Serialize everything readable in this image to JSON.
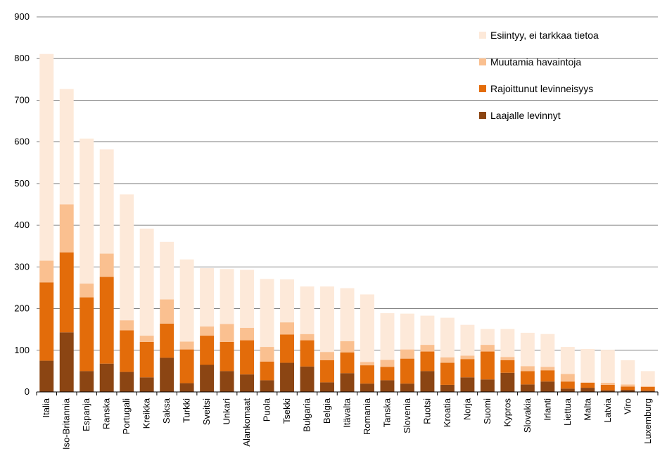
{
  "chart_data": {
    "type": "bar",
    "stacked": true,
    "title": "",
    "xlabel": "",
    "ylabel": "",
    "ylim": [
      0,
      900
    ],
    "yticks": [
      0,
      100,
      200,
      300,
      400,
      500,
      600,
      700,
      800,
      900
    ],
    "grid": true,
    "legend_position": "top-right",
    "categories": [
      "Italia",
      "Iso-Britannia",
      "Espanja",
      "Ranska",
      "Portugali",
      "Kreikka",
      "Saksa",
      "Turkki",
      "Sveitsi",
      "Unkari",
      "Alankomaat",
      "Puola",
      "Tsekki",
      "Bulgaria",
      "Belgia",
      "Itävalta",
      "Romania",
      "Tanska",
      "Slovenia",
      "Ruotsi",
      "Kroatia",
      "Norja",
      "Suomi",
      "Kypros",
      "Slovakia",
      "Irlanti",
      "Liettua",
      "Malta",
      "Latvia",
      "Viro",
      "Luxemburg"
    ],
    "series": [
      {
        "name": "Laajalle levinnyt",
        "color": "#8B4513",
        "values": [
          75,
          143,
          50,
          68,
          48,
          35,
          82,
          21,
          65,
          50,
          42,
          28,
          70,
          61,
          23,
          45,
          20,
          28,
          20,
          50,
          17,
          35,
          30,
          46,
          18,
          25,
          8,
          10,
          4,
          5,
          3
        ]
      },
      {
        "name": "Rajoittunut levinneisyys",
        "color": "#E36C0A",
        "values": [
          188,
          192,
          177,
          208,
          100,
          85,
          82,
          81,
          70,
          70,
          82,
          45,
          68,
          63,
          53,
          50,
          44,
          32,
          60,
          47,
          53,
          44,
          67,
          30,
          32,
          27,
          17,
          12,
          13,
          8,
          9
        ]
      },
      {
        "name": "Muutamia havaintoja",
        "color": "#FAC090",
        "values": [
          52,
          115,
          33,
          56,
          24,
          15,
          58,
          19,
          22,
          43,
          30,
          35,
          29,
          15,
          20,
          27,
          8,
          17,
          22,
          16,
          13,
          8,
          16,
          8,
          12,
          8,
          18,
          1,
          5,
          5,
          2
        ]
      },
      {
        "name": "Esiintyy, ei tarkkaa tietoa",
        "color": "#FDE9D9",
        "values": [
          496,
          277,
          348,
          250,
          302,
          257,
          138,
          197,
          140,
          132,
          139,
          163,
          103,
          114,
          157,
          127,
          162,
          112,
          86,
          70,
          95,
          74,
          38,
          67,
          80,
          79,
          65,
          80,
          79,
          58,
          36
        ]
      }
    ],
    "legend_order": [
      "Esiintyy, ei tarkkaa tietoa",
      "Muutamia havaintoja",
      "Rajoittunut levinneisyys",
      "Laajalle levinnyt"
    ]
  }
}
